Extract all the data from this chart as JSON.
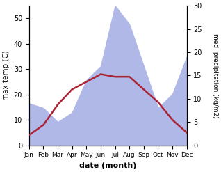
{
  "months": [
    "Jan",
    "Feb",
    "Mar",
    "Apr",
    "May",
    "Jun",
    "Jul",
    "Aug",
    "Sep",
    "Oct",
    "Nov",
    "Dec"
  ],
  "temperature": [
    4,
    8,
    16,
    22,
    25,
    28,
    27,
    27,
    22,
    17,
    10,
    5
  ],
  "precipitation": [
    9,
    8,
    5,
    7,
    14,
    17,
    30,
    26,
    17,
    8,
    11,
    19
  ],
  "temp_color": "#aa2233",
  "precip_color": "#b0b8e8",
  "temp_ylim": [
    0,
    55
  ],
  "precip_ylim": [
    0,
    30
  ],
  "xlabel": "date (month)",
  "ylabel_left": "max temp (C)",
  "ylabel_right": "med. precipitation (kg/m2)",
  "temp_yticks": [
    0,
    10,
    20,
    30,
    40,
    50
  ],
  "precip_yticks": [
    0,
    5,
    10,
    15,
    20,
    25,
    30
  ],
  "line_width": 1.8
}
